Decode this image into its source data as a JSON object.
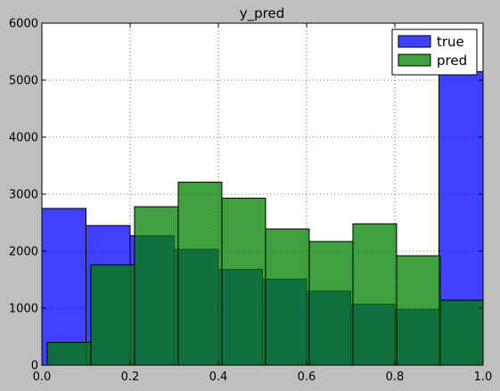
{
  "chart_data": {
    "type": "bar",
    "title": "y_pred",
    "xlabel": "",
    "ylabel": "",
    "xlim": [
      0.0,
      1.0
    ],
    "ylim": [
      0,
      6000
    ],
    "xticks": [
      "0.0",
      "0.2",
      "0.4",
      "0.6",
      "0.8",
      "1.0"
    ],
    "yticks": [
      "0",
      "1000",
      "2000",
      "3000",
      "4000",
      "5000",
      "6000"
    ],
    "grid": true,
    "legend_position": "top-right",
    "series": [
      {
        "name": "true",
        "color": "#0000ff",
        "opacity": 0.75,
        "bins": [
          {
            "x0": 0.0,
            "x1": 0.1,
            "value": 2750
          },
          {
            "x0": 0.1,
            "x1": 0.2,
            "value": 2450
          },
          {
            "x0": 0.2,
            "x1": 0.3,
            "value": 2270
          },
          {
            "x0": 0.3,
            "x1": 0.4,
            "value": 2030
          },
          {
            "x0": 0.4,
            "x1": 0.5,
            "value": 1680
          },
          {
            "x0": 0.5,
            "x1": 0.6,
            "value": 1510
          },
          {
            "x0": 0.6,
            "x1": 0.7,
            "value": 1300
          },
          {
            "x0": 0.7,
            "x1": 0.8,
            "value": 1070
          },
          {
            "x0": 0.8,
            "x1": 0.9,
            "value": 980
          },
          {
            "x0": 0.9,
            "x1": 1.0,
            "value": 5150
          }
        ]
      },
      {
        "name": "pred",
        "color": "#008000",
        "opacity": 0.75,
        "bins": [
          {
            "x0": 0.012,
            "x1": 0.111,
            "value": 400
          },
          {
            "x0": 0.111,
            "x1": 0.21,
            "value": 1760
          },
          {
            "x0": 0.21,
            "x1": 0.309,
            "value": 2780
          },
          {
            "x0": 0.309,
            "x1": 0.408,
            "value": 3210
          },
          {
            "x0": 0.408,
            "x1": 0.507,
            "value": 2930
          },
          {
            "x0": 0.507,
            "x1": 0.606,
            "value": 2390
          },
          {
            "x0": 0.606,
            "x1": 0.705,
            "value": 2170
          },
          {
            "x0": 0.705,
            "x1": 0.804,
            "value": 2480
          },
          {
            "x0": 0.804,
            "x1": 0.903,
            "value": 1920
          },
          {
            "x0": 0.903,
            "x1": 1.0,
            "value": 1140
          }
        ]
      }
    ]
  }
}
